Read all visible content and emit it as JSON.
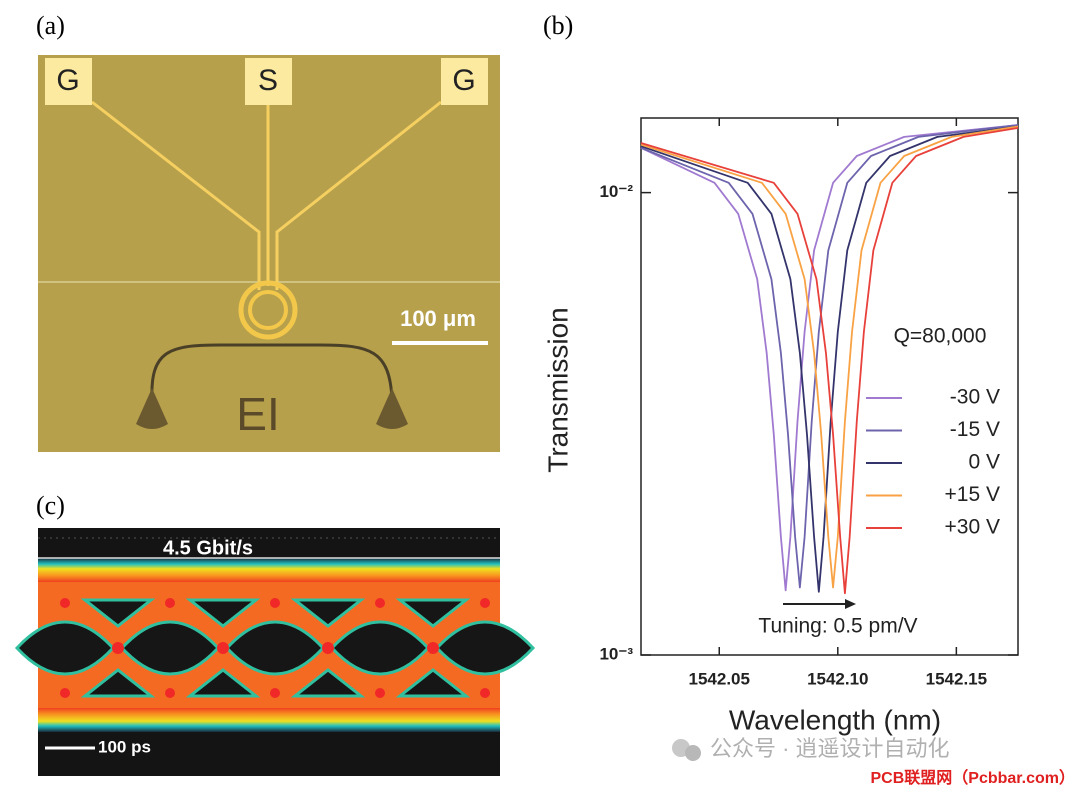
{
  "panel_labels": [
    "(a)",
    "(b)",
    "(c)"
  ],
  "micrograph": {
    "pads": [
      "G",
      "S",
      "G"
    ],
    "scale_bar": "100 μm",
    "chip_label": "EI"
  },
  "eye_diagram": {
    "bit_rate": "4.5 Gbit/s",
    "scale_bar": "100 ps"
  },
  "watermark": {
    "account": "公众号 · 逍遥设计自动化",
    "source": "PCB联盟网（Pcbbar.com）"
  },
  "chart_data": {
    "type": "line",
    "x_label": "Wavelength (nm)",
    "y_label": "Transmission",
    "yscale": "log",
    "xlim": [
      1542.017,
      1542.176
    ],
    "ylim": [
      0.001,
      0.0145
    ],
    "xticks": [
      1542.05,
      {
        "value": 1542.1,
        "label": "1542.10"
      },
      1542.15
    ],
    "yticks": [
      {
        "value": 0.001,
        "label": "10⁻³"
      },
      {
        "value": 0.01,
        "label": "10⁻²"
      }
    ],
    "legend": "center right",
    "annotations": [
      "Q=80,000",
      "Tuning: 0.5 pm/V"
    ],
    "series": [
      {
        "name": "-30 V",
        "color": "#a07ad0",
        "x": [
          1542.017,
          1542.048,
          1542.058,
          1542.066,
          1542.07,
          1542.073,
          1542.076,
          1542.078,
          1542.08,
          1542.083,
          1542.086,
          1542.09,
          1542.098,
          1542.108,
          1542.128,
          1542.176
        ],
        "values": [
          0.0125,
          0.0105,
          0.009,
          0.0065,
          0.0045,
          0.003,
          0.0018,
          0.00138,
          0.0018,
          0.0032,
          0.005,
          0.0075,
          0.0105,
          0.012,
          0.0132,
          0.014
        ]
      },
      {
        "name": "-15 V",
        "color": "#6c64ac",
        "x": [
          1542.017,
          1542.054,
          1542.064,
          1542.072,
          1542.076,
          1542.079,
          1542.082,
          1542.084,
          1542.086,
          1542.089,
          1542.092,
          1542.096,
          1542.104,
          1542.114,
          1542.134,
          1542.176
        ],
        "values": [
          0.0125,
          0.0105,
          0.009,
          0.0065,
          0.0045,
          0.003,
          0.0018,
          0.0014,
          0.0018,
          0.0032,
          0.005,
          0.0075,
          0.0105,
          0.012,
          0.0132,
          0.014
        ]
      },
      {
        "name": "0 V",
        "color": "#34346c",
        "x": [
          1542.017,
          1542.062,
          1542.072,
          1542.08,
          1542.084,
          1542.087,
          1542.09,
          1542.092,
          1542.094,
          1542.097,
          1542.1,
          1542.104,
          1542.112,
          1542.122,
          1542.142,
          1542.176
        ],
        "values": [
          0.0126,
          0.0105,
          0.009,
          0.0065,
          0.0045,
          0.003,
          0.0018,
          0.00137,
          0.0018,
          0.0032,
          0.005,
          0.0075,
          0.0105,
          0.012,
          0.0132,
          0.0139
        ]
      },
      {
        "name": "+15 V",
        "color": "#f8a244",
        "x": [
          1542.017,
          1542.068,
          1542.078,
          1542.086,
          1542.09,
          1542.093,
          1542.096,
          1542.098,
          1542.1,
          1542.103,
          1542.106,
          1542.11,
          1542.118,
          1542.128,
          1542.148,
          1542.176
        ],
        "values": [
          0.0127,
          0.0105,
          0.009,
          0.0065,
          0.0045,
          0.003,
          0.0018,
          0.0014,
          0.0018,
          0.0032,
          0.005,
          0.0075,
          0.0105,
          0.012,
          0.0132,
          0.0139
        ]
      },
      {
        "name": "+30 V",
        "color": "#e8403a",
        "x": [
          1542.017,
          1542.073,
          1542.083,
          1542.091,
          1542.095,
          1542.098,
          1542.101,
          1542.103,
          1542.105,
          1542.108,
          1542.111,
          1542.115,
          1542.123,
          1542.133,
          1542.153,
          1542.176
        ],
        "values": [
          0.0128,
          0.0105,
          0.009,
          0.0065,
          0.0045,
          0.003,
          0.0018,
          0.00136,
          0.0018,
          0.0032,
          0.005,
          0.0075,
          0.0105,
          0.012,
          0.0132,
          0.0138
        ]
      }
    ]
  }
}
